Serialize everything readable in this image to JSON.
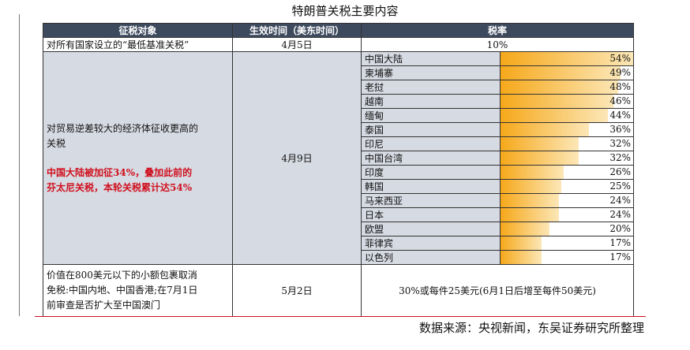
{
  "title": "特朗普关税主要内容",
  "source": "数据来源：央视新闻，东吴证券研究所整理",
  "headers": [
    "征税对象",
    "生效时间（美东时间）",
    "税率"
  ],
  "row1": {
    "target": "对所有国家设立的“最低基准关税”",
    "date": "4月5日",
    "rate": "10%"
  },
  "row2": {
    "target_line1": "对贸易逆差较大的经济体征收更高的",
    "target_line2": "关税",
    "note_line1": "中国大陆被加征34%，叠加此前的",
    "note_line2": "芬太尼关税，本轮关税累计达54%",
    "date": "4月9日"
  },
  "chart_data": {
    "type": "bar",
    "categories": [
      "中国大陆",
      "柬埔寨",
      "老挝",
      "越南",
      "缅甸",
      "泰国",
      "印尼",
      "中国台湾",
      "印度",
      "韩国",
      "马来西亚",
      "日本",
      "欧盟",
      "菲律宾",
      "以色列"
    ],
    "values": [
      54,
      49,
      48,
      46,
      44,
      36,
      32,
      32,
      26,
      25,
      24,
      24,
      20,
      17,
      17
    ],
    "labels": [
      "54%",
      "49%",
      "48%",
      "46%",
      "44%",
      "36%",
      "32%",
      "32%",
      "26%",
      "25%",
      "24%",
      "24%",
      "20%",
      "17%",
      "17%"
    ]
  },
  "row3": {
    "target_line1": "价值在800美元以下的小额包裹取消",
    "target_line2": "免税:中国内地、中国香港;在7月1日",
    "target_line3": "前审查是否扩大至中国澳门",
    "date": "5月2日",
    "rate": "30%或每件25美元(6月1日后增至每件50美元)"
  }
}
